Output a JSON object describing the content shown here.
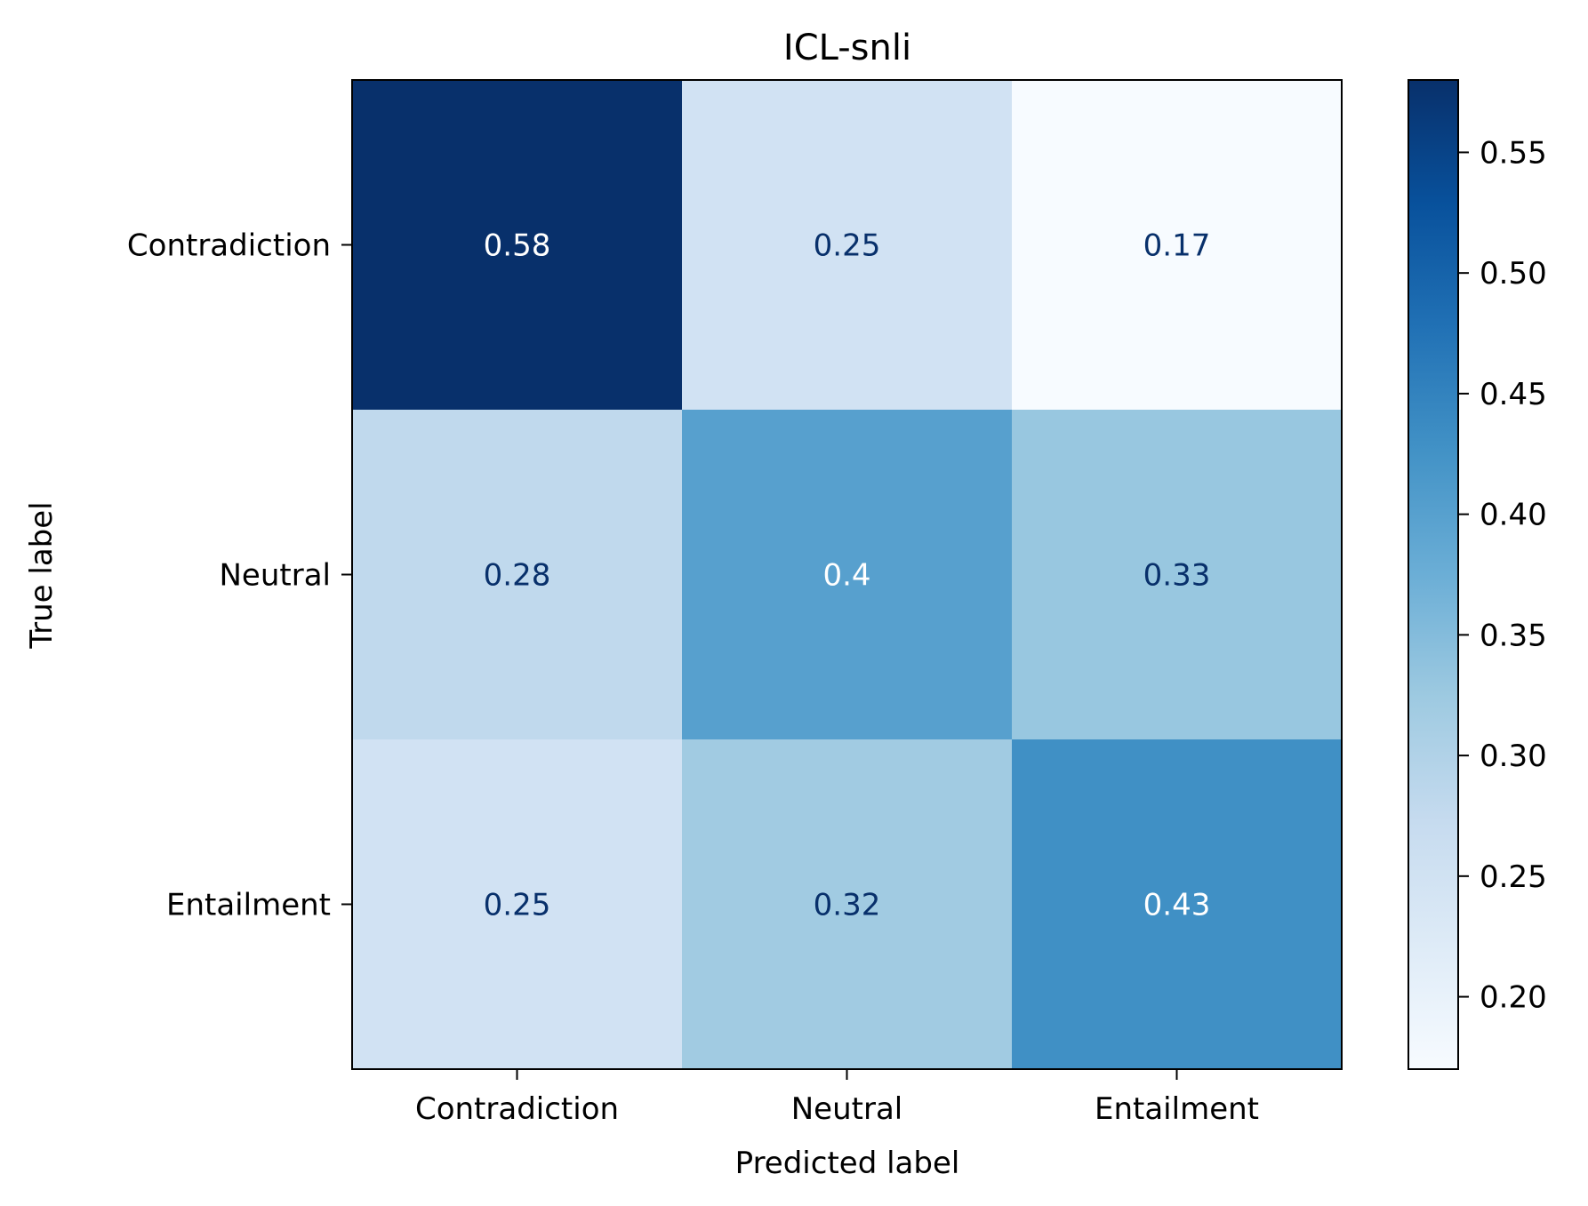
{
  "chart_data": {
    "type": "heatmap",
    "title": "ICL-snli",
    "xlabel": "Predicted label",
    "ylabel": "True label",
    "x_categories": [
      "Contradiction",
      "Neutral",
      "Entailment"
    ],
    "y_categories": [
      "Contradiction",
      "Neutral",
      "Entailment"
    ],
    "values": [
      [
        0.58,
        0.25,
        0.17
      ],
      [
        0.28,
        0.4,
        0.33
      ],
      [
        0.25,
        0.32,
        0.43
      ]
    ],
    "cell_labels": [
      [
        "0.58",
        "0.25",
        "0.17"
      ],
      [
        "0.28",
        "0.4",
        "0.33"
      ],
      [
        "0.25",
        "0.32",
        "0.43"
      ]
    ],
    "colormap": "Blues",
    "colorbar": {
      "range": [
        0.17,
        0.58
      ],
      "ticks": [
        0.2,
        0.25,
        0.3,
        0.35,
        0.4,
        0.45,
        0.5,
        0.55
      ],
      "tick_labels": [
        "0.20",
        "0.25",
        "0.30",
        "0.35",
        "0.40",
        "0.45",
        "0.50",
        "0.55"
      ]
    },
    "grid": false,
    "legend": "none"
  }
}
